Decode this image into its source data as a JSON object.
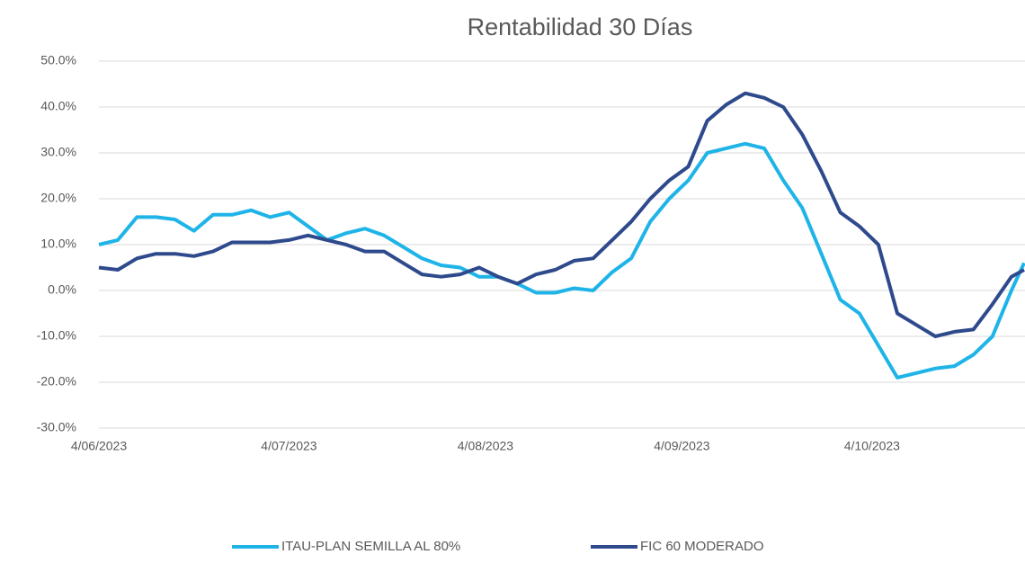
{
  "chart_data": {
    "type": "line",
    "title": "Rentabilidad 30 Días",
    "x": [
      "2023-06-04",
      "2023-06-07",
      "2023-06-10",
      "2023-06-13",
      "2023-06-16",
      "2023-06-19",
      "2023-06-22",
      "2023-06-25",
      "2023-06-28",
      "2023-07-01",
      "2023-07-04",
      "2023-07-07",
      "2023-07-10",
      "2023-07-13",
      "2023-07-16",
      "2023-07-19",
      "2023-07-22",
      "2023-07-25",
      "2023-07-28",
      "2023-07-31",
      "2023-08-03",
      "2023-08-06",
      "2023-08-09",
      "2023-08-12",
      "2023-08-15",
      "2023-08-18",
      "2023-08-21",
      "2023-08-24",
      "2023-08-27",
      "2023-08-30",
      "2023-09-02",
      "2023-09-05",
      "2023-09-08",
      "2023-09-11",
      "2023-09-14",
      "2023-09-17",
      "2023-09-20",
      "2023-09-23",
      "2023-09-26",
      "2023-09-29",
      "2023-10-02",
      "2023-10-05",
      "2023-10-08",
      "2023-10-11",
      "2023-10-14",
      "2023-10-17",
      "2023-10-20",
      "2023-10-23",
      "2023-10-26",
      "2023-10-28"
    ],
    "series": [
      {
        "name": "ITAU-PLAN SEMILLA AL 80%",
        "color": "#1fb4e8",
        "values": [
          10,
          11,
          16,
          16,
          15.5,
          13,
          16.5,
          16.5,
          17.5,
          16,
          17,
          14,
          11,
          12.5,
          13.5,
          12,
          9.5,
          7,
          5.5,
          5,
          3,
          3,
          1.5,
          -0.5,
          -0.5,
          0.5,
          0,
          4,
          7,
          15,
          20,
          24,
          30,
          31,
          32,
          31,
          24,
          18,
          8,
          -2,
          -5,
          -12,
          -19,
          -18,
          -17,
          -16.5,
          -14,
          -10,
          0,
          6
        ]
      },
      {
        "name": "FIC 60 MODERADO",
        "color": "#2e4a8c",
        "values": [
          5,
          4.5,
          7,
          8,
          8,
          7.5,
          8.5,
          10.5,
          10.5,
          10.5,
          11,
          12,
          11,
          10,
          8.5,
          8.5,
          6,
          3.5,
          3,
          3.5,
          5,
          3,
          1.5,
          3.5,
          4.5,
          6.5,
          7,
          11,
          15,
          20,
          24,
          27,
          37,
          40.5,
          43,
          42,
          40,
          34,
          26,
          17,
          14,
          10,
          -5,
          -7.5,
          -10,
          -9,
          -8.5,
          -3,
          3,
          4.5
        ]
      }
    ],
    "xlim": [
      "2023-06-04",
      "2023-10-28"
    ],
    "xticks": [
      {
        "value": "2023-06-04",
        "label": "4/06/2023"
      },
      {
        "value": "2023-07-04",
        "label": "4/07/2023"
      },
      {
        "value": "2023-08-04",
        "label": "4/08/2023"
      },
      {
        "value": "2023-09-04",
        "label": "4/09/2023"
      },
      {
        "value": "2023-10-04",
        "label": "4/10/2023"
      }
    ],
    "ylim": [
      -30,
      50
    ],
    "yticks": [
      {
        "value": -30,
        "label": "-30.0%"
      },
      {
        "value": -20,
        "label": "-20.0%"
      },
      {
        "value": -10,
        "label": "-10.0%"
      },
      {
        "value": 0,
        "label": "0.0%"
      },
      {
        "value": 10,
        "label": "10.0%"
      },
      {
        "value": 20,
        "label": "20.0%"
      },
      {
        "value": 30,
        "label": "30.0%"
      },
      {
        "value": 40,
        "label": "40.0%"
      },
      {
        "value": 50,
        "label": "50.0%"
      }
    ],
    "grid": true,
    "legend": "bottom"
  }
}
